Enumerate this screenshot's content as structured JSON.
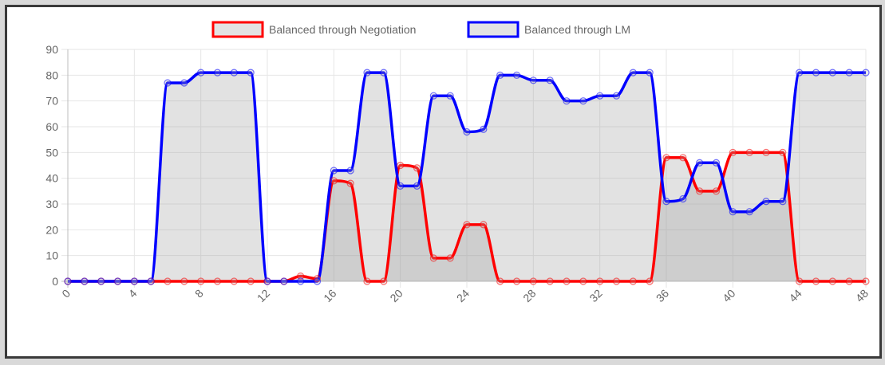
{
  "chart_data": {
    "type": "line",
    "x": [
      0,
      1,
      2,
      3,
      4,
      5,
      6,
      7,
      8,
      9,
      10,
      11,
      12,
      13,
      14,
      15,
      16,
      17,
      18,
      19,
      20,
      21,
      22,
      23,
      24,
      25,
      26,
      27,
      28,
      29,
      30,
      31,
      32,
      33,
      34,
      35,
      36,
      37,
      38,
      39,
      40,
      41,
      42,
      43,
      44,
      45,
      46,
      47,
      48
    ],
    "xticks": [
      "0",
      "4",
      "8",
      "12",
      "16",
      "20",
      "24",
      "28",
      "32",
      "36",
      "40",
      "44",
      "48"
    ],
    "ylim": [
      0,
      90
    ],
    "yticks": [
      "0",
      "10",
      "20",
      "30",
      "40",
      "50",
      "60",
      "70",
      "80",
      "90"
    ],
    "grid": true,
    "legend_position": "top",
    "series": [
      {
        "name": "Balanced through Negotiation",
        "color": "#ff0000",
        "fill": "rgba(160,160,160,0.3)",
        "values": [
          0,
          0,
          0,
          0,
          0,
          0,
          0,
          0,
          0,
          0,
          0,
          0,
          0,
          0,
          2,
          1,
          39,
          38,
          0,
          0,
          45,
          44,
          9,
          9,
          22,
          22,
          0,
          0,
          0,
          0,
          0,
          0,
          0,
          0,
          0,
          0,
          48,
          48,
          35,
          35,
          50,
          50,
          50,
          50,
          0,
          0,
          0,
          0,
          0
        ]
      },
      {
        "name": "Balanced through LM",
        "color": "#0000ff",
        "fill": "rgba(160,160,160,0.3)",
        "values": [
          0,
          0,
          0,
          0,
          0,
          0,
          77,
          77,
          81,
          81,
          81,
          81,
          0,
          0,
          0,
          0,
          43,
          43,
          81,
          81,
          37,
          37,
          72,
          72,
          58,
          59,
          80,
          80,
          78,
          78,
          70,
          70,
          72,
          72,
          81,
          81,
          31,
          32,
          46,
          46,
          27,
          27,
          31,
          31,
          81,
          81,
          81,
          81,
          81
        ]
      }
    ]
  }
}
